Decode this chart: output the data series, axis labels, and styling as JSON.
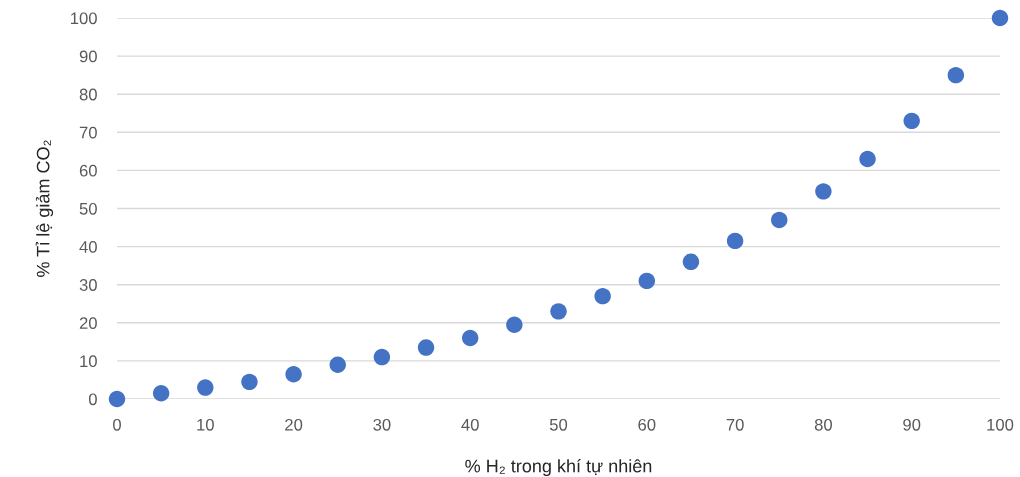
{
  "chart_data": {
    "type": "scatter",
    "xlabel": "% H₂ trong khí tự nhiên",
    "ylabel": "% Tỉ lệ giảm CO₂",
    "x": [
      0,
      5,
      10,
      15,
      20,
      25,
      30,
      35,
      40,
      45,
      50,
      55,
      60,
      65,
      70,
      75,
      80,
      85,
      90,
      95,
      100
    ],
    "series": [
      {
        "color": "#4472c4",
        "values": [
          0,
          1.5,
          3,
          4.5,
          6.5,
          9,
          11,
          13.5,
          16,
          19.5,
          23,
          27,
          31,
          36,
          41.5,
          47,
          54.5,
          63,
          73,
          85,
          100
        ]
      }
    ],
    "xlim": [
      0,
      100
    ],
    "xticks": [
      0,
      10,
      20,
      30,
      40,
      50,
      60,
      70,
      80,
      90,
      100
    ],
    "ylim": [
      0,
      100
    ],
    "yticks": [
      0,
      10,
      20,
      30,
      40,
      50,
      60,
      70,
      80,
      90,
      100
    ],
    "grid": "y",
    "marker": "circle"
  }
}
